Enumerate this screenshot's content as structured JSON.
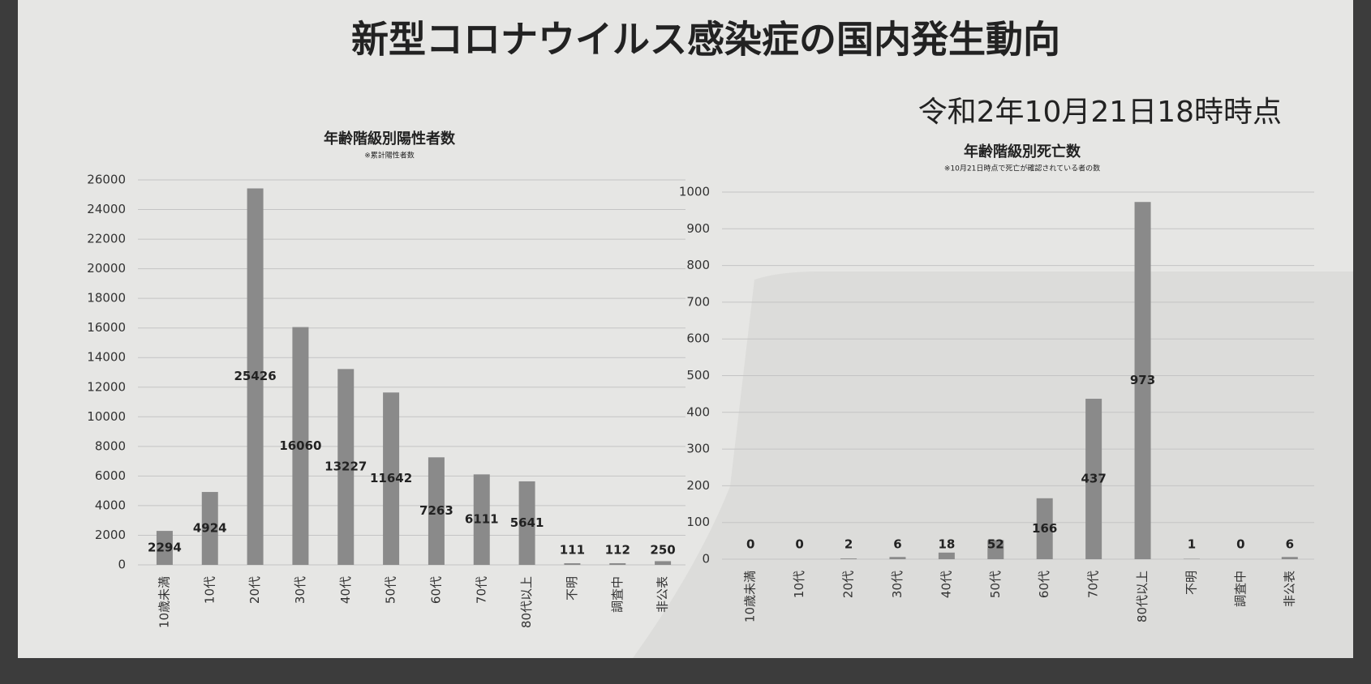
{
  "title": "新型コロナウイルス感染症の国内発生動向",
  "subtitle": "令和2年10月21日18時時点",
  "chart_data": [
    {
      "type": "bar",
      "title": "年齢階級別陽性者数",
      "subtitle": "※累計陽性者数",
      "categories": [
        "10歳未満",
        "10代",
        "20代",
        "30代",
        "40代",
        "50代",
        "60代",
        "70代",
        "80代以上",
        "不明",
        "調査中",
        "非公表"
      ],
      "values": [
        2294,
        4924,
        25426,
        16060,
        13227,
        11642,
        7263,
        6111,
        5641,
        111,
        112,
        250
      ],
      "color": "#8a8a8a",
      "ylim": [
        0,
        26000
      ],
      "yticks": [
        0,
        2000,
        4000,
        6000,
        8000,
        10000,
        12000,
        14000,
        16000,
        18000,
        20000,
        22000,
        24000,
        26000
      ],
      "grid": true
    },
    {
      "type": "bar",
      "title": "年齢階級別死亡数",
      "subtitle": "※10月21日時点で死亡が確認されている者の数",
      "categories": [
        "10歳未満",
        "10代",
        "20代",
        "30代",
        "40代",
        "50代",
        "60代",
        "70代",
        "80代以上",
        "不明",
        "調査中",
        "非公表"
      ],
      "values": [
        0,
        0,
        2,
        6,
        18,
        52,
        166,
        437,
        973,
        1,
        0,
        6
      ],
      "color": "#8a8a8a",
      "ylim": [
        0,
        1000
      ],
      "yticks": [
        0,
        100,
        200,
        300,
        400,
        500,
        600,
        700,
        800,
        900,
        1000
      ],
      "grid": true
    }
  ]
}
